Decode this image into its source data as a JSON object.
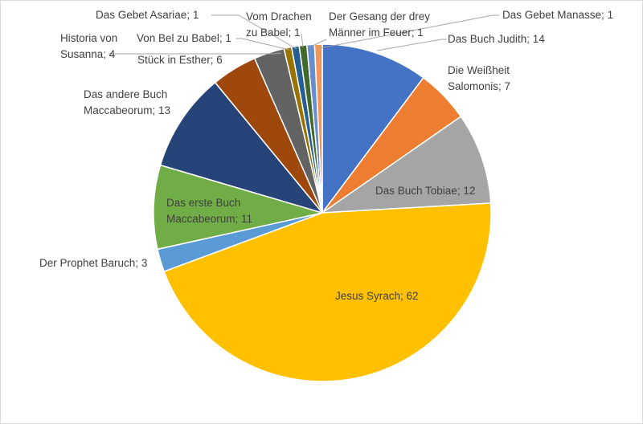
{
  "chart_data": {
    "type": "pie",
    "title": "",
    "start_angle_deg": 0,
    "direction": "clockwise",
    "slices": [
      {
        "label": "Das Buch Judith",
        "value": 14,
        "color": "#4472C4",
        "label_lines": [
          "Das Buch Judith; 14"
        ]
      },
      {
        "label": "Die Weißheit Salomonis",
        "value": 7,
        "color": "#ED7D31",
        "label_lines": [
          "Die Weißheit",
          "Salomonis; 7"
        ]
      },
      {
        "label": "Das Buch Tobiae",
        "value": 12,
        "color": "#A5A5A5",
        "label_lines": [
          "Das Buch Tobiae; 12"
        ]
      },
      {
        "label": "Jesus Syrach",
        "value": 62,
        "color": "#FFC000",
        "label_lines": [
          "Jesus Syrach; 62"
        ]
      },
      {
        "label": "Der Prophet Baruch",
        "value": 3,
        "color": "#5B9BD5",
        "label_lines": [
          "Der Prophet Baruch; 3"
        ]
      },
      {
        "label": "Das erste Buch Maccabeorum",
        "value": 11,
        "color": "#70AD47",
        "label_lines": [
          "Das erste Buch",
          "Maccabeorum; 11"
        ]
      },
      {
        "label": "Das andere Buch Maccabeorum",
        "value": 13,
        "color": "#264478",
        "label_lines": [
          "Das andere Buch",
          "Maccabeorum; 13"
        ]
      },
      {
        "label": "Stück in Esther",
        "value": 6,
        "color": "#9E480E",
        "label_lines": [
          "Stück in Esther; 6"
        ]
      },
      {
        "label": "Historia von Susanna",
        "value": 4,
        "color": "#636363",
        "label_lines": [
          "Historia von",
          "Susanna; 4"
        ]
      },
      {
        "label": "Von Bel zu Babel",
        "value": 1,
        "color": "#997300",
        "label_lines": [
          "Von Bel zu Babel; 1"
        ]
      },
      {
        "label": "Das Gebet Asariae",
        "value": 1,
        "color": "#255E91",
        "label_lines": [
          "Das Gebet Asariae; 1"
        ]
      },
      {
        "label": "Vom Drachen zu Babel",
        "value": 1,
        "color": "#43682B",
        "label_lines": [
          "Vom Drachen",
          "zu Babel; 1"
        ]
      },
      {
        "label": "Der Gesang der drey Männer im Feuer",
        "value": 1,
        "color": "#698ED0",
        "label_lines": [
          "Der Gesang der drey",
          "Männer im Feuer; 1"
        ]
      },
      {
        "label": "Das Gebet Manasse",
        "value": 1,
        "color": "#F1975A",
        "label_lines": [
          "Das Gebet Manasse; 1"
        ]
      }
    ]
  }
}
